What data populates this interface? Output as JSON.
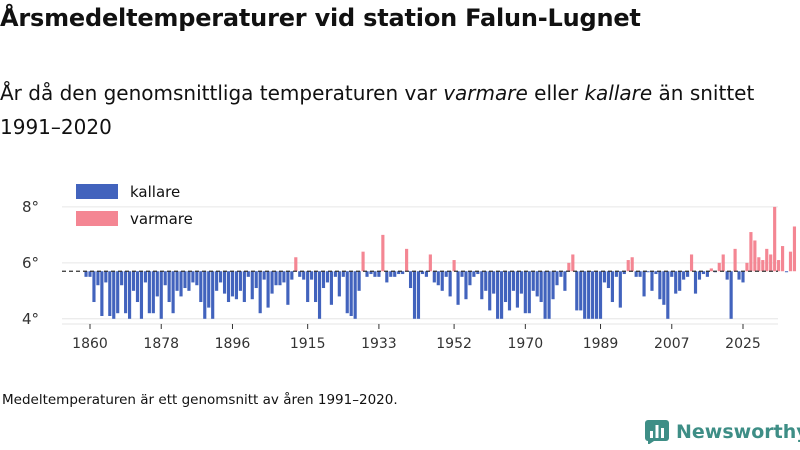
{
  "header": {
    "title": "Årsmedeltemperaturer vid station Falun-Lugnet",
    "subtitle_part1": "År då den genomsnittliga temperaturen var ",
    "subtitle_em1": "varmare",
    "subtitle_part2": " eller ",
    "subtitle_em2": "kallare",
    "subtitle_part3": " än snittet 1991–2020"
  },
  "footnote": "Medeltemperaturen är ett genomsnitt av åren 1991–2020.",
  "brand": {
    "name": "Newsworthy",
    "logo_icon": "bar-chart-icon"
  },
  "colors": {
    "kallare": "#4263bd",
    "varmare": "#f48693",
    "grid": "#e6e6e6",
    "axis": "#333333",
    "reference": "#333333",
    "brand": "#3e8e86"
  },
  "chart_data": {
    "type": "bar",
    "title": "Årsmedeltemperaturer vid station Falun-Lugnet",
    "xlabel": "",
    "ylabel": "",
    "baseline": 5.7,
    "ylim": [
      3.85,
      8.3
    ],
    "y_ticks": [
      4,
      6,
      8
    ],
    "y_tick_labels": [
      "4°",
      "6°",
      "8°"
    ],
    "x_range": [
      1860,
      2025
    ],
    "x_ticks": [
      1860,
      1878,
      1896,
      1915,
      1933,
      1952,
      1970,
      1989,
      2007,
      2025
    ],
    "legend": {
      "position": "top-left",
      "items": [
        {
          "key": "kallare",
          "label": "kallare"
        },
        {
          "key": "varmare",
          "label": "varmare"
        }
      ]
    },
    "start_year": 1859,
    "values": [
      5.5,
      5.5,
      4.6,
      5.2,
      4.1,
      5.3,
      4.1,
      4.0,
      4.2,
      5.2,
      4.2,
      4.0,
      5.0,
      4.6,
      4.0,
      5.3,
      4.2,
      4.2,
      4.8,
      4.0,
      5.2,
      4.6,
      4.2,
      5.0,
      4.8,
      5.1,
      5.0,
      5.3,
      5.2,
      4.6,
      4.0,
      4.4,
      4.0,
      5.0,
      5.3,
      4.9,
      4.6,
      4.8,
      4.7,
      5.0,
      4.6,
      5.5,
      4.7,
      5.1,
      4.2,
      5.4,
      4.4,
      4.9,
      5.2,
      5.2,
      5.3,
      4.5,
      5.4,
      6.2,
      5.5,
      5.4,
      4.6,
      5.4,
      4.6,
      4.0,
      5.1,
      5.3,
      4.5,
      5.5,
      4.8,
      5.5,
      4.2,
      4.1,
      4.0,
      5.0,
      6.4,
      5.5,
      5.6,
      5.5,
      5.5,
      7.0,
      5.3,
      5.5,
      5.5,
      5.6,
      5.6,
      6.5,
      5.1,
      4.0,
      4.0,
      5.6,
      5.5,
      6.3,
      5.3,
      5.2,
      5.0,
      5.5,
      4.8,
      6.1,
      4.5,
      5.5,
      4.7,
      5.2,
      5.5,
      5.6,
      4.7,
      5.0,
      4.3,
      4.9,
      4.0,
      4.0,
      4.6,
      4.3,
      5.0,
      4.4,
      4.9,
      4.2,
      4.2,
      5.0,
      4.8,
      4.6,
      4.0,
      4.0,
      4.7,
      5.2,
      5.5,
      5.0,
      6.0,
      6.3,
      4.3,
      4.3,
      4.0,
      4.0,
      4.0,
      4.0,
      4.0,
      5.3,
      5.1,
      4.6,
      5.5,
      4.4,
      5.6,
      6.1,
      6.2,
      5.5,
      5.5,
      4.8,
      5.7,
      5.0,
      5.6,
      4.7,
      4.5,
      4.0,
      5.5,
      4.9,
      5.0,
      5.4,
      5.5,
      6.3,
      4.9,
      5.4,
      5.6,
      5.5,
      5.8,
      5.7,
      6.0,
      6.3,
      5.4,
      4.0,
      6.5,
      5.4,
      5.3,
      6.0,
      7.1,
      6.8,
      6.2,
      6.1,
      6.5,
      6.3,
      8.0,
      6.1,
      6.6,
      5.7,
      6.4,
      7.3
    ]
  }
}
